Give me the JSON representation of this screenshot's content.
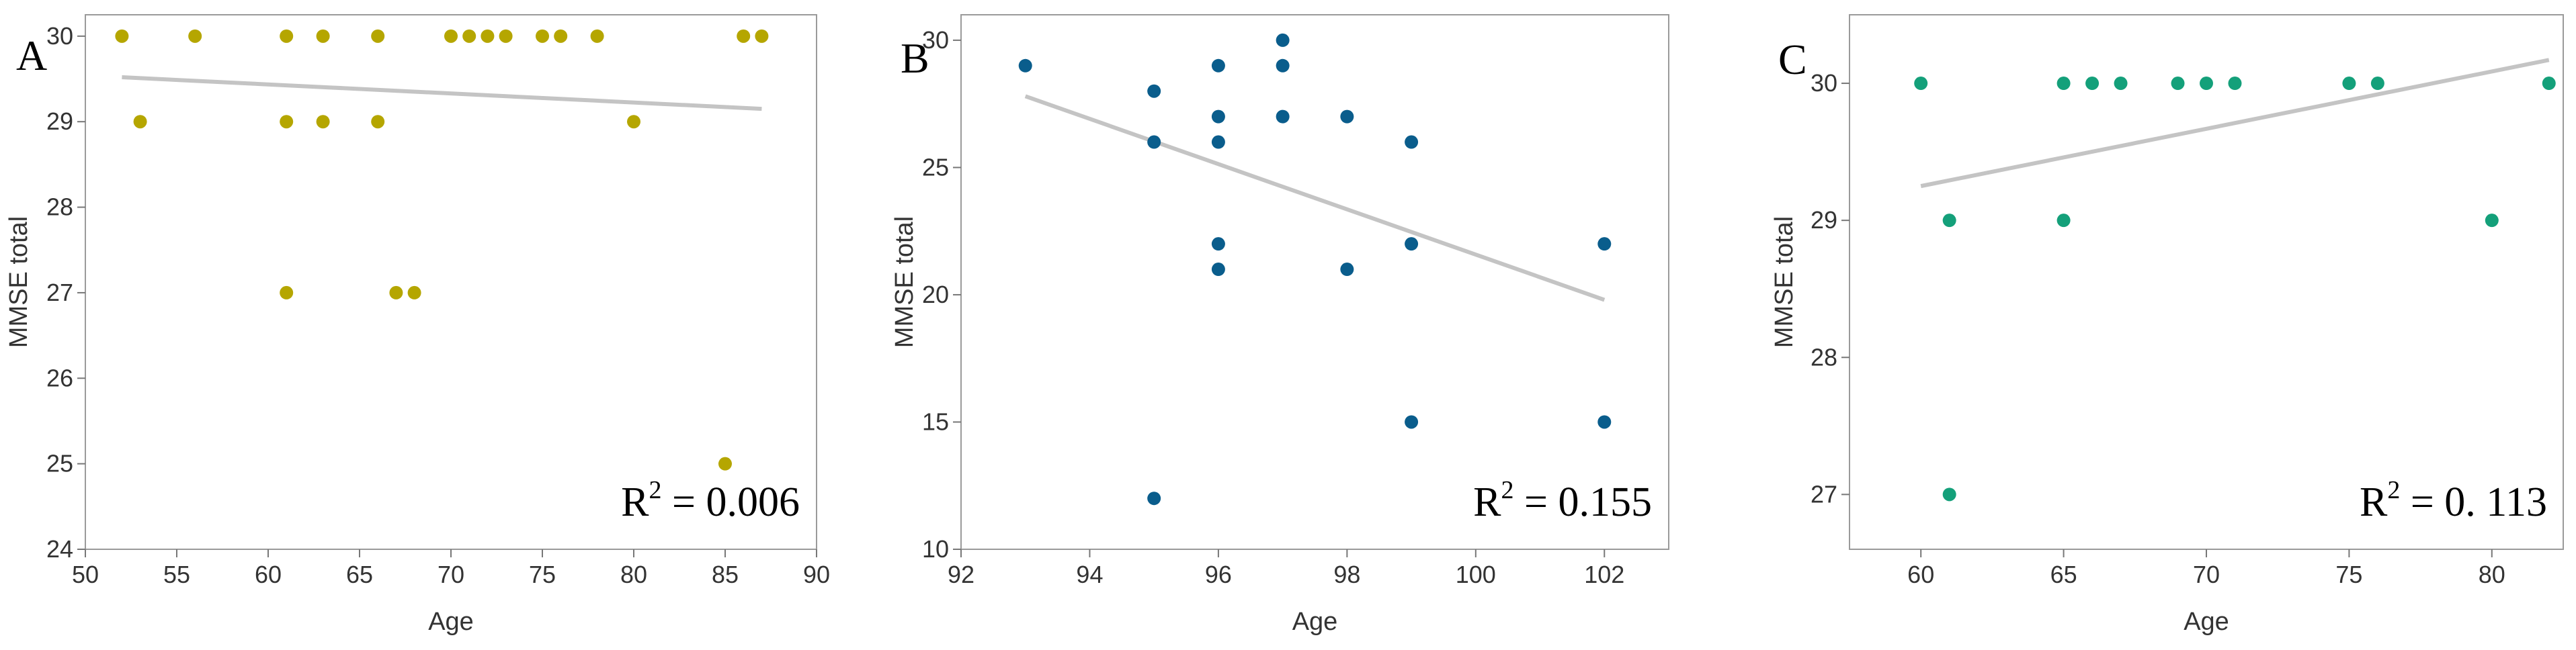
{
  "chart_data": [
    {
      "type": "scatter",
      "panel_label": "A",
      "xlabel": "Age",
      "ylabel": "MMSE total",
      "xlim": [
        50,
        90
      ],
      "ylim": [
        24,
        30.25
      ],
      "xticks": [
        50,
        55,
        60,
        65,
        70,
        75,
        80,
        85,
        90
      ],
      "yticks": [
        24,
        25,
        26,
        27,
        28,
        29,
        30
      ],
      "grid": false,
      "color": "#b5a600",
      "points": [
        {
          "x": 52,
          "y": 30
        },
        {
          "x": 53,
          "y": 29
        },
        {
          "x": 56,
          "y": 30
        },
        {
          "x": 61,
          "y": 30
        },
        {
          "x": 61,
          "y": 29
        },
        {
          "x": 61,
          "y": 27
        },
        {
          "x": 63,
          "y": 30
        },
        {
          "x": 63,
          "y": 29
        },
        {
          "x": 66,
          "y": 30
        },
        {
          "x": 66,
          "y": 29
        },
        {
          "x": 67,
          "y": 27
        },
        {
          "x": 68,
          "y": 27
        },
        {
          "x": 70,
          "y": 30
        },
        {
          "x": 71,
          "y": 30
        },
        {
          "x": 72,
          "y": 30
        },
        {
          "x": 73,
          "y": 30
        },
        {
          "x": 75,
          "y": 30
        },
        {
          "x": 76,
          "y": 30
        },
        {
          "x": 78,
          "y": 30
        },
        {
          "x": 80,
          "y": 29
        },
        {
          "x": 85,
          "y": 25
        },
        {
          "x": 86,
          "y": 30
        },
        {
          "x": 87,
          "y": 30
        }
      ],
      "trendline": {
        "x": [
          52,
          87
        ],
        "y": [
          29.52,
          29.15
        ]
      },
      "r2_prefix": "R",
      "r2_exponent": "2",
      "r2_value": " = 0.006"
    },
    {
      "type": "scatter",
      "panel_label": "B",
      "xlabel": "Age",
      "ylabel": "MMSE total",
      "xlim": [
        92,
        103
      ],
      "ylim": [
        10,
        31
      ],
      "xticks": [
        92,
        94,
        96,
        98,
        100,
        102
      ],
      "yticks": [
        10,
        15,
        20,
        25,
        30
      ],
      "grid": false,
      "color": "#0a5d8c",
      "points": [
        {
          "x": 93,
          "y": 29
        },
        {
          "x": 95,
          "y": 28
        },
        {
          "x": 95,
          "y": 26
        },
        {
          "x": 95,
          "y": 12
        },
        {
          "x": 96,
          "y": 29
        },
        {
          "x": 96,
          "y": 27
        },
        {
          "x": 96,
          "y": 26
        },
        {
          "x": 96,
          "y": 22
        },
        {
          "x": 96,
          "y": 21
        },
        {
          "x": 97,
          "y": 30
        },
        {
          "x": 97,
          "y": 29
        },
        {
          "x": 97,
          "y": 27
        },
        {
          "x": 98,
          "y": 27
        },
        {
          "x": 98,
          "y": 21
        },
        {
          "x": 99,
          "y": 26
        },
        {
          "x": 99,
          "y": 22
        },
        {
          "x": 99,
          "y": 15
        },
        {
          "x": 102,
          "y": 22
        },
        {
          "x": 102,
          "y": 15
        }
      ],
      "trendline": {
        "x": [
          93,
          102
        ],
        "y": [
          27.8,
          19.8
        ]
      },
      "r2_prefix": "R",
      "r2_exponent": "2",
      "r2_value": " = 0.155"
    },
    {
      "type": "scatter",
      "panel_label": "C",
      "xlabel": "Age",
      "ylabel": "MMSE total",
      "xlim": [
        57.5,
        82.5
      ],
      "ylim": [
        26.6,
        30.5
      ],
      "xticks": [
        60,
        65,
        70,
        75,
        80
      ],
      "yticks": [
        27,
        28,
        29,
        30
      ],
      "grid": false,
      "color": "#14a07a",
      "points": [
        {
          "x": 60,
          "y": 30
        },
        {
          "x": 61,
          "y": 29
        },
        {
          "x": 61,
          "y": 27
        },
        {
          "x": 65,
          "y": 30
        },
        {
          "x": 65,
          "y": 29
        },
        {
          "x": 66,
          "y": 30
        },
        {
          "x": 67,
          "y": 30
        },
        {
          "x": 69,
          "y": 30
        },
        {
          "x": 70,
          "y": 30
        },
        {
          "x": 71,
          "y": 30
        },
        {
          "x": 75,
          "y": 30
        },
        {
          "x": 76,
          "y": 30
        },
        {
          "x": 80,
          "y": 29
        },
        {
          "x": 82,
          "y": 30
        }
      ],
      "trendline": {
        "x": [
          60,
          82
        ],
        "y": [
          29.25,
          30.17
        ]
      },
      "r2_prefix": "R",
      "r2_exponent": "2",
      "r2_value": " = 0. 113"
    }
  ]
}
